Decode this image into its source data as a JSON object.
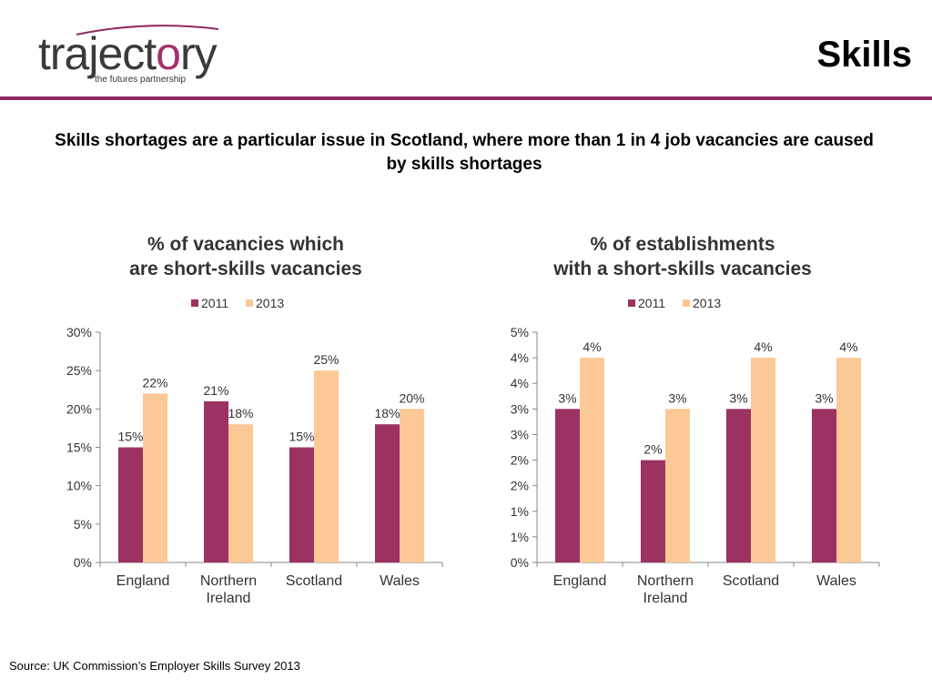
{
  "header": {
    "logo_word": "trajectory",
    "logo_tagline": "the futures partnership",
    "title": "Skills"
  },
  "headline": "Skills shortages are a particular issue in Scotland, where more than 1 in 4 job vacancies are caused by skills shortages",
  "source": "Source: UK Commission’s Employer Skills Survey 2013",
  "colors": {
    "accent": "#8e2a60",
    "series_2011": "#9b3262",
    "series_2013": "#fcc895"
  },
  "chart_data": [
    {
      "type": "bar",
      "title": "% of vacancies which\nare short-skills vacancies",
      "categories": [
        "England",
        "Northern\nIreland",
        "Scotland",
        "Wales"
      ],
      "series": [
        {
          "name": "2011",
          "values": [
            15,
            21,
            15,
            18
          ],
          "labels": [
            "15%",
            "21%",
            "15%",
            "18%"
          ]
        },
        {
          "name": "2013",
          "values": [
            22,
            18,
            25,
            20
          ],
          "labels": [
            "22%",
            "18%",
            "25%",
            "20%"
          ]
        }
      ],
      "yticks": [
        "0%",
        "5%",
        "10%",
        "15%",
        "20%",
        "25%",
        "30%"
      ],
      "ylim": [
        0,
        30
      ],
      "legend": "top"
    },
    {
      "type": "bar",
      "title": "% of establishments\nwith a short-skills vacancies",
      "categories": [
        "England",
        "Northern\nIreland",
        "Scotland",
        "Wales"
      ],
      "series": [
        {
          "name": "2011",
          "values": [
            3,
            2,
            3,
            3
          ],
          "labels": [
            "3%",
            "2%",
            "3%",
            "3%"
          ]
        },
        {
          "name": "2013",
          "values": [
            4,
            3,
            4,
            4
          ],
          "labels": [
            "4%",
            "3%",
            "4%",
            "4%"
          ]
        }
      ],
      "yticks": [
        "0%",
        "1%",
        "1%",
        "2%",
        "2%",
        "3%",
        "3%",
        "4%",
        "4%",
        "5%"
      ],
      "ylim": [
        0,
        4.5
      ],
      "legend": "top"
    }
  ]
}
